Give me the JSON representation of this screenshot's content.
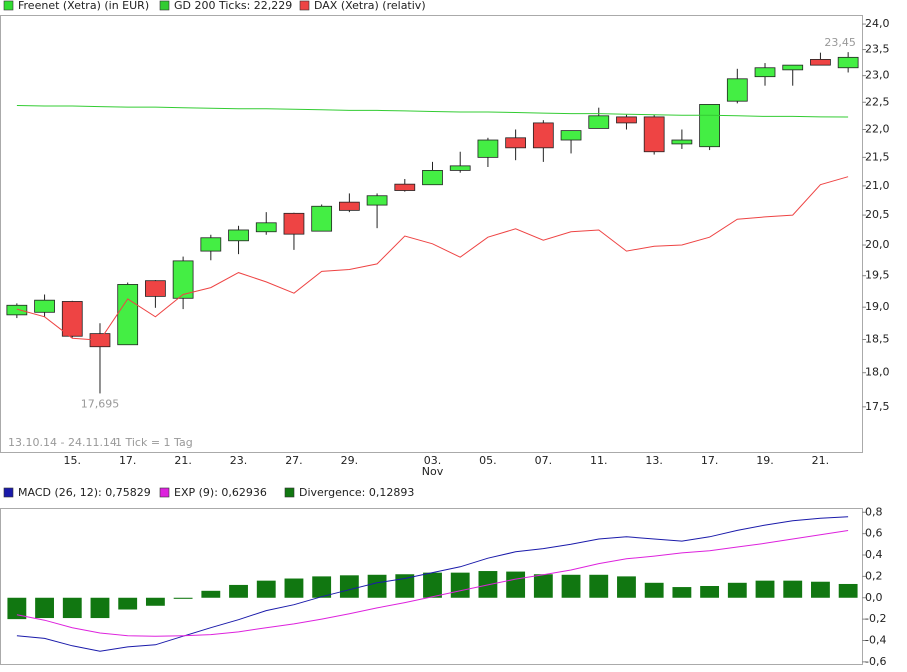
{
  "chart_data": [
    {
      "type": "candlestick",
      "categories": [
        null,
        null,
        "15.",
        null,
        "17.",
        null,
        "21.",
        null,
        "23.",
        null,
        "27.",
        null,
        "29.",
        null,
        null,
        "03.",
        null,
        "05.",
        null,
        "07.",
        null,
        "11.",
        null,
        "13.",
        null,
        "17.",
        null,
        "19.",
        null,
        "21.",
        null
      ],
      "x_sublabels": [
        null,
        null,
        null,
        null,
        null,
        null,
        null,
        null,
        null,
        null,
        null,
        null,
        null,
        null,
        null,
        "Nov",
        null,
        null,
        null,
        null,
        null,
        null,
        null,
        null,
        null,
        null,
        null,
        null,
        null,
        null,
        null
      ],
      "series": [
        {
          "name": "Freenet (Xetra) (in EUR)",
          "color": "#33dd33",
          "up_color": "#44ee44",
          "down_color": "#ee4444",
          "open": [
            18.88,
            18.92,
            19.09,
            18.59,
            18.42,
            19.42,
            19.14,
            19.9,
            20.07,
            20.22,
            20.53,
            20.23,
            20.72,
            20.67,
            21.03,
            21.02,
            21.27,
            21.5,
            21.85,
            22.12,
            21.81,
            22.02,
            22.23,
            22.23,
            21.74,
            21.69,
            22.52,
            22.98,
            23.11,
            23.31,
            23.15
          ],
          "high": [
            19.06,
            19.2,
            19.1,
            18.75,
            19.39,
            19.43,
            19.81,
            20.17,
            20.32,
            20.55,
            20.54,
            20.68,
            20.87,
            20.87,
            21.12,
            21.42,
            21.6,
            21.85,
            22.0,
            22.17,
            21.98,
            22.4,
            22.27,
            22.27,
            22.0,
            22.46,
            23.13,
            23.24,
            23.2,
            23.44,
            23.45
          ],
          "low": [
            18.83,
            18.85,
            18.53,
            17.695,
            18.42,
            18.99,
            18.97,
            19.75,
            19.85,
            20.17,
            19.92,
            20.23,
            20.55,
            20.28,
            20.9,
            21.02,
            21.23,
            21.33,
            21.45,
            21.42,
            21.57,
            22.02,
            22.0,
            21.55,
            21.65,
            21.63,
            22.48,
            22.81,
            22.81,
            23.2,
            23.06
          ],
          "close": [
            19.03,
            19.11,
            18.55,
            18.39,
            19.36,
            19.17,
            19.74,
            20.12,
            20.25,
            20.37,
            20.18,
            20.65,
            20.58,
            20.83,
            20.92,
            21.27,
            21.35,
            21.81,
            21.67,
            21.67,
            21.98,
            22.25,
            22.12,
            21.6,
            21.81,
            22.46,
            22.94,
            23.15,
            23.2,
            23.2,
            23.35
          ],
          "low_labels": [
            null,
            null,
            null,
            "17,695",
            null,
            null,
            null,
            null,
            null,
            null,
            null,
            null,
            null,
            null,
            null,
            null,
            null,
            null,
            null,
            null,
            null,
            null,
            null,
            null,
            null,
            null,
            null,
            null,
            null,
            null,
            null
          ],
          "high_labels": [
            null,
            null,
            null,
            null,
            null,
            null,
            null,
            null,
            null,
            null,
            null,
            null,
            null,
            null,
            null,
            null,
            null,
            null,
            null,
            null,
            null,
            null,
            null,
            null,
            null,
            null,
            null,
            null,
            null,
            null,
            "23,45"
          ]
        },
        {
          "name": "GD 200 Ticks: 22,229",
          "color": "#33cc33",
          "values": [
            22.44,
            22.43,
            22.43,
            22.42,
            22.41,
            22.41,
            22.4,
            22.39,
            22.38,
            22.38,
            22.37,
            22.36,
            22.35,
            22.35,
            22.34,
            22.33,
            22.32,
            22.32,
            22.31,
            22.3,
            22.29,
            22.29,
            22.28,
            22.27,
            22.26,
            22.26,
            22.25,
            22.24,
            22.24,
            22.23,
            22.229
          ]
        },
        {
          "name": "DAX (Xetra) (relativ)",
          "color": "#ee4444",
          "values": [
            18.97,
            18.85,
            18.52,
            18.49,
            19.13,
            18.85,
            19.2,
            19.31,
            19.55,
            19.4,
            19.22,
            19.57,
            19.6,
            19.69,
            20.15,
            20.02,
            19.8,
            20.13,
            20.27,
            20.08,
            20.22,
            20.25,
            19.9,
            19.98,
            20.0,
            20.13,
            20.43,
            20.47,
            20.5,
            21.02,
            21.16
          ]
        }
      ],
      "log_scale": true,
      "ylim": [
        16.86,
        24.18
      ],
      "yticks": [
        {
          "value": 17.5,
          "label": "17,5"
        },
        {
          "value": 18,
          "label": "18,0"
        },
        {
          "value": 18.5,
          "label": "18,5"
        },
        {
          "value": 19,
          "label": "19,0"
        },
        {
          "value": 19.5,
          "label": "19,5"
        },
        {
          "value": 20,
          "label": "20,0"
        },
        {
          "value": 20.5,
          "label": "20,5"
        },
        {
          "value": 21,
          "label": "21,0"
        },
        {
          "value": 21.5,
          "label": "21,5"
        },
        {
          "value": 22,
          "label": "22,0"
        },
        {
          "value": 22.5,
          "label": "22,5"
        },
        {
          "value": 23,
          "label": "23,0"
        },
        {
          "value": 23.5,
          "label": "23,5"
        },
        {
          "value": 24,
          "label": "24,0"
        }
      ],
      "range_note": "13.10.14 - 24.11.14",
      "tick_note": "1 Tick = 1 Tag",
      "grid": false
    },
    {
      "type": "combo",
      "series": [
        {
          "name": "MACD (26, 12): 0,75829",
          "color": "#1a1aaa",
          "type": "line",
          "values": [
            -0.355,
            -0.38,
            -0.45,
            -0.5,
            -0.46,
            -0.44,
            -0.36,
            -0.28,
            -0.205,
            -0.12,
            -0.065,
            0.01,
            0.075,
            0.14,
            0.18,
            0.235,
            0.29,
            0.37,
            0.43,
            0.46,
            0.5,
            0.55,
            0.57,
            0.55,
            0.53,
            0.57,
            0.63,
            0.68,
            0.72,
            0.745,
            0.758
          ]
        },
        {
          "name": "EXP (9): 0,62936",
          "color": "#dd22dd",
          "type": "line",
          "values": [
            -0.16,
            -0.21,
            -0.28,
            -0.33,
            -0.355,
            -0.36,
            -0.355,
            -0.345,
            -0.32,
            -0.28,
            -0.245,
            -0.2,
            -0.15,
            -0.095,
            -0.045,
            0.01,
            0.065,
            0.12,
            0.175,
            0.215,
            0.26,
            0.32,
            0.365,
            0.39,
            0.42,
            0.44,
            0.475,
            0.51,
            0.55,
            0.59,
            0.629
          ]
        },
        {
          "name": "Divergence: 0,12893",
          "color": "#117711",
          "type": "bar",
          "values": [
            -0.2,
            -0.19,
            -0.19,
            -0.19,
            -0.11,
            -0.075,
            -0.01,
            0.065,
            0.12,
            0.16,
            0.18,
            0.2,
            0.21,
            0.215,
            0.22,
            0.235,
            0.235,
            0.25,
            0.245,
            0.22,
            0.215,
            0.215,
            0.2,
            0.14,
            0.1,
            0.11,
            0.14,
            0.16,
            0.16,
            0.15,
            0.129
          ]
        }
      ],
      "ylim": [
        -0.62,
        0.84
      ],
      "yticks": [
        {
          "value": -0.6,
          "label": "-0,6"
        },
        {
          "value": -0.4,
          "label": "-0,4"
        },
        {
          "value": -0.2,
          "label": "-0,2"
        },
        {
          "value": 0,
          "label": "0,0"
        },
        {
          "value": 0.2,
          "label": "0,2"
        },
        {
          "value": 0.4,
          "label": "0,4"
        },
        {
          "value": 0.6,
          "label": "0,6"
        },
        {
          "value": 0.8,
          "label": "0,8"
        }
      ],
      "grid": false
    }
  ]
}
